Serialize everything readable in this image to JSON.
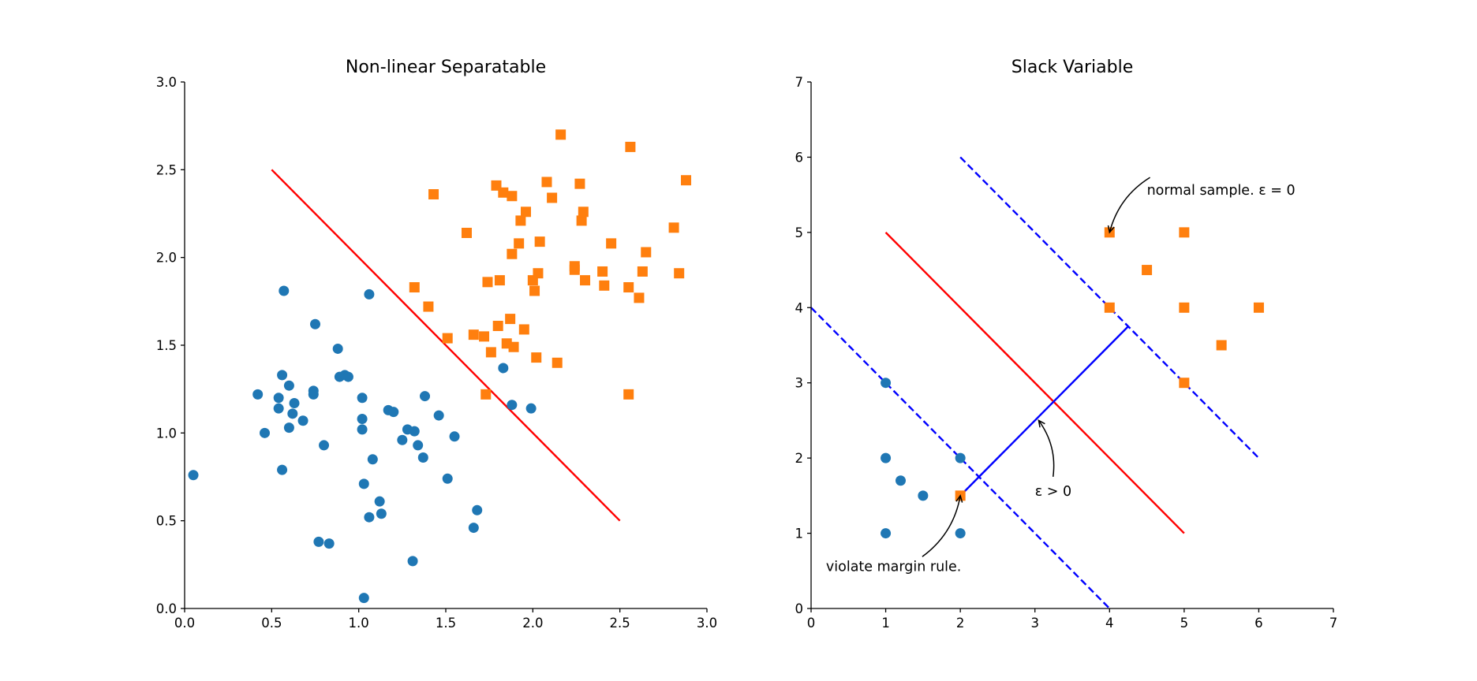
{
  "chart_data": [
    {
      "type": "scatter",
      "title": "Non-linear Separatable",
      "xlabel": "",
      "ylabel": "",
      "xlim": [
        0,
        3
      ],
      "ylim": [
        0,
        3
      ],
      "xticks": [
        "0.0",
        "0.5",
        "1.0",
        "1.5",
        "2.0",
        "2.5",
        "3.0"
      ],
      "yticks": [
        "0.0",
        "0.5",
        "1.0",
        "1.5",
        "2.0",
        "2.5",
        "3.0"
      ],
      "colors": {
        "class_a": "#1f77b4",
        "class_b": "#ff7f0e",
        "line": "#ff0000"
      },
      "series": [
        {
          "marker": "circle",
          "color": "#1f77b4",
          "points": [
            [
              0.05,
              0.76
            ],
            [
              0.42,
              1.22
            ],
            [
              0.46,
              1.0
            ],
            [
              0.54,
              1.14
            ],
            [
              0.54,
              1.2
            ],
            [
              0.56,
              0.79
            ],
            [
              0.56,
              1.33
            ],
            [
              0.57,
              1.81
            ],
            [
              0.6,
              1.27
            ],
            [
              0.6,
              1.03
            ],
            [
              0.62,
              1.11
            ],
            [
              0.63,
              1.17
            ],
            [
              0.68,
              1.07
            ],
            [
              0.74,
              1.22
            ],
            [
              0.74,
              1.24
            ],
            [
              0.75,
              1.62
            ],
            [
              0.77,
              0.38
            ],
            [
              0.8,
              0.93
            ],
            [
              0.83,
              0.37
            ],
            [
              0.88,
              1.48
            ],
            [
              0.89,
              1.32
            ],
            [
              0.92,
              1.33
            ],
            [
              0.94,
              1.32
            ],
            [
              1.02,
              1.2
            ],
            [
              1.02,
              1.08
            ],
            [
              1.02,
              1.02
            ],
            [
              1.03,
              0.71
            ],
            [
              1.03,
              0.06
            ],
            [
              1.06,
              1.79
            ],
            [
              1.06,
              0.52
            ],
            [
              1.08,
              0.85
            ],
            [
              1.12,
              0.61
            ],
            [
              1.13,
              0.54
            ],
            [
              1.17,
              1.13
            ],
            [
              1.2,
              1.12
            ],
            [
              1.25,
              0.96
            ],
            [
              1.28,
              1.02
            ],
            [
              1.31,
              0.27
            ],
            [
              1.32,
              1.01
            ],
            [
              1.34,
              0.93
            ],
            [
              1.37,
              0.86
            ],
            [
              1.38,
              1.21
            ],
            [
              1.46,
              1.1
            ],
            [
              1.51,
              0.74
            ],
            [
              1.55,
              0.98
            ],
            [
              1.66,
              0.46
            ],
            [
              1.68,
              0.56
            ],
            [
              1.83,
              1.37
            ],
            [
              1.88,
              1.16
            ],
            [
              1.99,
              1.14
            ]
          ]
        },
        {
          "marker": "square",
          "color": "#ff7f0e",
          "points": [
            [
              1.32,
              1.83
            ],
            [
              1.4,
              1.72
            ],
            [
              1.43,
              2.36
            ],
            [
              1.51,
              1.54
            ],
            [
              1.62,
              2.14
            ],
            [
              1.66,
              1.56
            ],
            [
              1.72,
              1.55
            ],
            [
              1.73,
              1.22
            ],
            [
              1.74,
              1.86
            ],
            [
              1.76,
              1.46
            ],
            [
              1.79,
              2.41
            ],
            [
              1.8,
              1.61
            ],
            [
              1.81,
              1.87
            ],
            [
              1.83,
              2.37
            ],
            [
              1.85,
              1.51
            ],
            [
              1.87,
              1.65
            ],
            [
              1.88,
              2.02
            ],
            [
              1.88,
              2.35
            ],
            [
              1.89,
              1.49
            ],
            [
              1.92,
              2.08
            ],
            [
              1.93,
              2.21
            ],
            [
              1.95,
              1.59
            ],
            [
              1.96,
              2.26
            ],
            [
              2.0,
              1.87
            ],
            [
              2.01,
              1.81
            ],
            [
              2.02,
              1.43
            ],
            [
              2.03,
              1.91
            ],
            [
              2.04,
              2.09
            ],
            [
              2.08,
              2.43
            ],
            [
              2.11,
              2.34
            ],
            [
              2.14,
              1.4
            ],
            [
              2.16,
              2.7
            ],
            [
              2.24,
              1.93
            ],
            [
              2.24,
              1.95
            ],
            [
              2.27,
              2.42
            ],
            [
              2.28,
              2.21
            ],
            [
              2.29,
              2.26
            ],
            [
              2.3,
              1.87
            ],
            [
              2.4,
              1.92
            ],
            [
              2.41,
              1.84
            ],
            [
              2.45,
              2.08
            ],
            [
              2.55,
              1.83
            ],
            [
              2.55,
              1.22
            ],
            [
              2.56,
              2.63
            ],
            [
              2.61,
              1.77
            ],
            [
              2.63,
              1.92
            ],
            [
              2.65,
              2.03
            ],
            [
              2.81,
              2.17
            ],
            [
              2.84,
              1.91
            ],
            [
              2.88,
              2.44
            ]
          ]
        }
      ],
      "lines": [
        {
          "color": "#ff0000",
          "dash": false,
          "x": [
            0.5,
            2.5
          ],
          "y": [
            2.5,
            0.5
          ]
        }
      ]
    },
    {
      "type": "scatter",
      "title": "Slack Variable",
      "xlabel": "",
      "ylabel": "",
      "xlim": [
        0,
        7
      ],
      "ylim": [
        0,
        7
      ],
      "xticks": [
        "0",
        "1",
        "2",
        "3",
        "4",
        "5",
        "6",
        "7"
      ],
      "yticks": [
        "0",
        "1",
        "2",
        "3",
        "4",
        "5",
        "6",
        "7"
      ],
      "series": [
        {
          "marker": "circle",
          "color": "#1f77b4",
          "points": [
            [
              1,
              3
            ],
            [
              1,
              2
            ],
            [
              1.2,
              1.7
            ],
            [
              1.5,
              1.5
            ],
            [
              1,
              1
            ],
            [
              2,
              2
            ],
            [
              2,
              1
            ]
          ]
        },
        {
          "marker": "square",
          "color": "#ff7f0e",
          "points": [
            [
              4,
              5
            ],
            [
              5,
              5
            ],
            [
              4.5,
              4.5
            ],
            [
              4,
              4
            ],
            [
              5,
              4
            ],
            [
              6,
              4
            ],
            [
              5.5,
              3.5
            ],
            [
              5,
              3
            ],
            [
              2,
              1.5
            ]
          ]
        }
      ],
      "lines": [
        {
          "color": "#ff0000",
          "dash": false,
          "x": [
            1,
            5
          ],
          "y": [
            5,
            1
          ]
        },
        {
          "color": "#0000ff",
          "dash": true,
          "x": [
            0,
            4
          ],
          "y": [
            4,
            0
          ]
        },
        {
          "color": "#0000ff",
          "dash": true,
          "x": [
            2,
            6
          ],
          "y": [
            6,
            2
          ]
        },
        {
          "color": "#0000ff",
          "dash": false,
          "x": [
            2,
            4.25
          ],
          "y": [
            1.5,
            3.75
          ]
        }
      ],
      "annotations": [
        {
          "text": "normal sample. ε = 0",
          "xy": [
            4,
            5
          ],
          "xytext": [
            4.5,
            5.5
          ]
        },
        {
          "text": "ε > 0",
          "xy": [
            3.05,
            2.5
          ],
          "xytext": [
            3,
            1.5
          ]
        },
        {
          "text": "violate margin rule.",
          "xy": [
            2,
            1.5
          ],
          "xytext": [
            0.2,
            0.5
          ]
        }
      ]
    }
  ]
}
